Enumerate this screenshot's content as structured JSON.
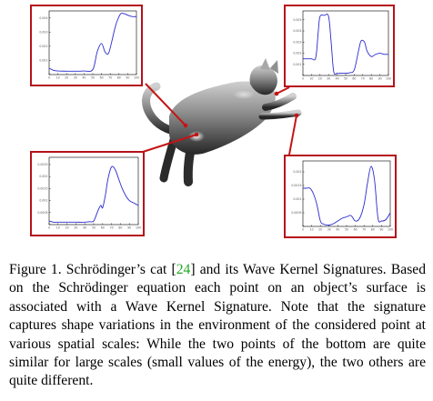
{
  "caption": {
    "lead": "Figure 1. Schrödinger’s cat [",
    "ref": "24",
    "rest": "] and its Wave Kernel Signatures. Based on the Schrödinger equation each point on an object’s surface is associated with a Wave Kernel Signature. Note that the signature captures shape variations in the environment of the considered point at various spatial scales: While the two points of the bottom are quite similar for large scales (small values of the energy), the two others are quite different."
  },
  "colors": {
    "frame": "#b5121b",
    "curve": "#2b2bcf",
    "leader": "#c41414",
    "ref": "#22a822"
  },
  "chart_data": [
    {
      "type": "line",
      "position": "top-left",
      "xlim": [
        0,
        100
      ],
      "ylim": [
        0,
        0.0045
      ],
      "x_ticks": [
        "0",
        "10",
        "20",
        "30",
        "40",
        "50",
        "60",
        "70",
        "80",
        "90",
        "100"
      ],
      "y_ticks": [
        "",
        "0.001",
        "0.002",
        "0.003",
        "0.004"
      ],
      "x": [
        0,
        5,
        10,
        20,
        30,
        40,
        50,
        55,
        60,
        64,
        68,
        72,
        75,
        78,
        82,
        86,
        90,
        95,
        100
      ],
      "y": [
        0.00045,
        0.0003,
        0.00025,
        0.00024,
        0.00024,
        0.00025,
        0.00035,
        0.0016,
        0.0022,
        0.0016,
        0.0015,
        0.0024,
        0.0032,
        0.0038,
        0.0043,
        0.0043,
        0.0042,
        0.0041,
        0.0041
      ]
    },
    {
      "type": "line",
      "position": "top-right",
      "xlim": [
        0,
        100
      ],
      "ylim": [
        0,
        0.0058
      ],
      "x_ticks": [
        "0",
        "10",
        "20",
        "30",
        "40",
        "50",
        "60",
        "70",
        "80",
        "90",
        "100"
      ],
      "y_ticks": [
        "",
        "0.001",
        "0.002",
        "0.003",
        "0.004",
        "0.005"
      ],
      "x": [
        0,
        5,
        10,
        15,
        18,
        20,
        25,
        30,
        33,
        36,
        40,
        45,
        50,
        55,
        60,
        65,
        68,
        72,
        75,
        80,
        85,
        90,
        95,
        100
      ],
      "y": [
        0.0015,
        0.0015,
        0.0015,
        0.0016,
        0.004,
        0.0053,
        0.0054,
        0.0053,
        0.003,
        0.00035,
        0.0002,
        0.0002,
        0.0002,
        0.00025,
        0.0005,
        0.0022,
        0.0031,
        0.003,
        0.0022,
        0.0017,
        0.0019,
        0.002,
        0.0019,
        0.0019
      ]
    },
    {
      "type": "line",
      "position": "bottom-left",
      "xlim": [
        0,
        100
      ],
      "ylim": [
        0,
        0.0028
      ],
      "x_ticks": [
        "0",
        "10",
        "20",
        "30",
        "40",
        "50",
        "60",
        "70",
        "80",
        "90",
        "100"
      ],
      "y_ticks": [
        "",
        "0.0005",
        "0.001",
        "0.0015",
        "0.002",
        "0.0025"
      ],
      "x": [
        0,
        5,
        10,
        20,
        30,
        40,
        45,
        50,
        55,
        58,
        60,
        63,
        66,
        70,
        74,
        78,
        82,
        86,
        90,
        95,
        100
      ],
      "y": [
        0.00015,
        0.0001,
        0.0001,
        0.0001,
        0.0001,
        0.0001,
        0.00012,
        0.00015,
        0.0006,
        0.0008,
        0.0007,
        0.0012,
        0.0019,
        0.0024,
        0.0023,
        0.0019,
        0.0015,
        0.0012,
        0.001,
        0.0009,
        0.0008
      ]
    },
    {
      "type": "line",
      "position": "bottom-right",
      "xlim": [
        0,
        100
      ],
      "ylim": [
        0,
        0.0024
      ],
      "x_ticks": [
        "0",
        "10",
        "20",
        "30",
        "40",
        "50",
        "60",
        "70",
        "80",
        "90",
        "100"
      ],
      "y_ticks": [
        "",
        "0.0005",
        "0.001",
        "0.0015",
        "0.002"
      ],
      "x": [
        0,
        4,
        8,
        12,
        16,
        20,
        24,
        30,
        35,
        40,
        45,
        50,
        55,
        60,
        65,
        70,
        74,
        78,
        82,
        86,
        90,
        95,
        100
      ],
      "y": [
        0.0014,
        0.0014,
        0.0014,
        0.0012,
        0.0008,
        0.0002,
        8e-05,
        5e-05,
        0.0001,
        0.0002,
        0.0003,
        0.00035,
        0.0004,
        0.0002,
        0.0003,
        0.0008,
        0.0016,
        0.0022,
        0.0017,
        0.0003,
        0.0002,
        0.00025,
        0.0005
      ]
    }
  ]
}
